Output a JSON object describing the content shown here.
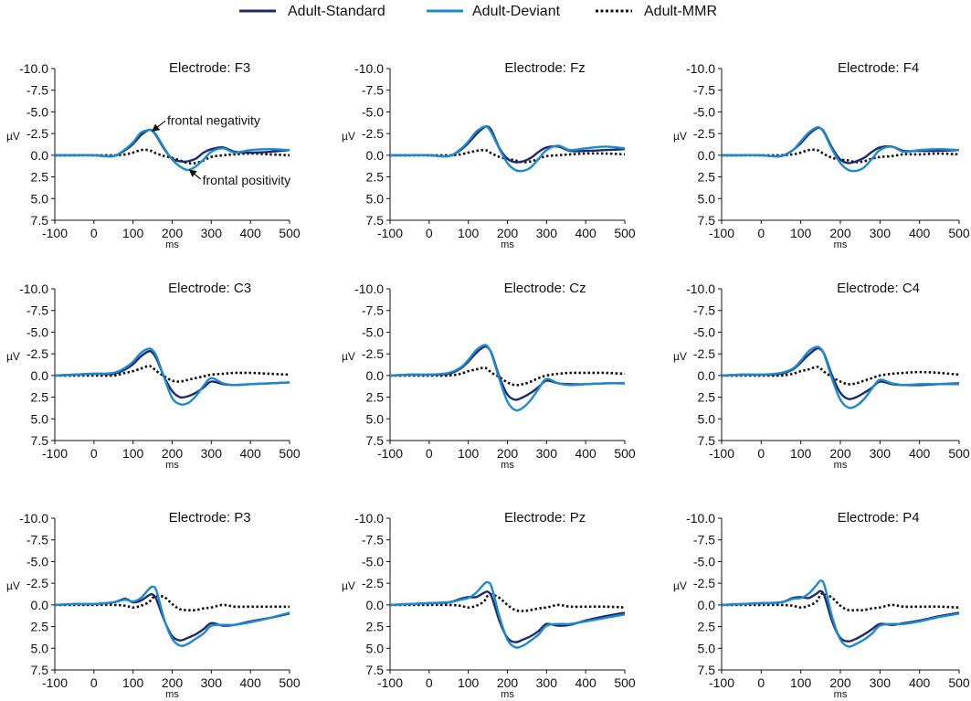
{
  "chart_data": {
    "type": "line",
    "legend": {
      "position": "top-center",
      "entries": [
        {
          "name": "Adult-Standard",
          "color": "#1f2a6b",
          "style": "solid"
        },
        {
          "name": "Adult-Deviant",
          "color": "#1d8ad0",
          "style": "solid"
        },
        {
          "name": "Adult-MMR",
          "color": "#111111",
          "style": "dotted"
        }
      ]
    },
    "layout": "3x3 grid",
    "xlabel": "ms",
    "ylabel": "µV",
    "xlim": [
      -100,
      500
    ],
    "ylim": [
      -10,
      7.5
    ],
    "y_inverted": true,
    "xticks": [
      -100,
      0,
      100,
      200,
      300,
      400,
      500
    ],
    "yticks": [
      -10,
      -7.5,
      -5,
      -2.5,
      0,
      2.5,
      5,
      7.5
    ],
    "ytick_labels": [
      "-10.0",
      "-7.5",
      "-5.0",
      "-2.5",
      "0.0",
      "2.5",
      "5.0",
      "7.5"
    ],
    "xtick_labels": [
      "-100",
      "0",
      "100",
      "200",
      "300",
      "400",
      "500"
    ],
    "x": [
      -100,
      -50,
      0,
      50,
      80,
      100,
      120,
      140,
      150,
      160,
      180,
      200,
      220,
      240,
      260,
      280,
      300,
      330,
      360,
      400,
      450,
      500
    ],
    "panels": [
      {
        "title": "Electrode: F3",
        "annotations": [
          {
            "text": "frontal negativity",
            "x": 145,
            "y": -2.8
          },
          {
            "text": "frontal positivity",
            "x": 240,
            "y": 1.7
          }
        ],
        "series": [
          {
            "name": "Adult-Standard",
            "values": [
              0,
              0,
              0,
              0.1,
              -0.6,
              -1.3,
              -2.3,
              -2.9,
              -2.8,
              -2.2,
              -0.7,
              0.4,
              0.7,
              0.7,
              0.4,
              -0.3,
              -0.7,
              -0.9,
              -0.4,
              -0.3,
              -0.4,
              -0.6
            ]
          },
          {
            "name": "Adult-Deviant",
            "values": [
              0,
              0,
              0,
              0.1,
              -0.7,
              -1.5,
              -2.6,
              -2.9,
              -2.8,
              -2.3,
              -0.8,
              0.5,
              1.3,
              1.7,
              1.3,
              0.5,
              -0.4,
              -0.8,
              -0.3,
              -0.6,
              -0.7,
              -0.6
            ]
          },
          {
            "name": "Adult-MMR",
            "values": [
              0,
              0,
              0,
              0,
              -0.1,
              -0.3,
              -0.6,
              -0.6,
              -0.4,
              -0.2,
              0.1,
              0.3,
              0.6,
              0.9,
              0.9,
              0.6,
              0.2,
              0,
              -0.1,
              -0.2,
              -0.1,
              0
            ]
          }
        ]
      },
      {
        "title": "Electrode: Fz",
        "annotations": [],
        "series": [
          {
            "name": "Adult-Standard",
            "values": [
              0,
              0,
              0,
              0.1,
              -0.6,
              -1.4,
              -2.4,
              -3.2,
              -3.3,
              -2.8,
              -0.8,
              0.4,
              0.8,
              0.7,
              0.3,
              -0.4,
              -0.9,
              -1.0,
              -0.5,
              -0.5,
              -0.6,
              -0.7
            ]
          },
          {
            "name": "Adult-Deviant",
            "values": [
              0,
              0,
              0,
              0.1,
              -0.7,
              -1.6,
              -2.7,
              -3.3,
              -3.2,
              -2.5,
              -0.7,
              0.9,
              1.7,
              1.8,
              1.4,
              0.4,
              -0.6,
              -1.1,
              -0.6,
              -0.8,
              -1.0,
              -0.8
            ]
          },
          {
            "name": "Adult-MMR",
            "values": [
              0,
              0,
              0,
              0,
              -0.1,
              -0.3,
              -0.5,
              -0.6,
              -0.5,
              -0.2,
              0.2,
              0.4,
              0.6,
              0.8,
              0.7,
              0.4,
              0.1,
              0,
              -0.1,
              -0.2,
              -0.2,
              -0.1
            ]
          }
        ]
      },
      {
        "title": "Electrode: F4",
        "annotations": [],
        "series": [
          {
            "name": "Adult-Standard",
            "values": [
              0,
              0,
              0,
              0.1,
              -0.6,
              -1.4,
              -2.4,
              -3.1,
              -3.1,
              -2.6,
              -0.8,
              0.5,
              0.9,
              0.7,
              0.3,
              -0.4,
              -0.9,
              -1.0,
              -0.5,
              -0.5,
              -0.5,
              -0.6
            ]
          },
          {
            "name": "Adult-Deviant",
            "values": [
              0,
              0,
              0,
              0.1,
              -0.6,
              -1.6,
              -2.6,
              -3.2,
              -3.1,
              -2.5,
              -0.6,
              0.9,
              1.7,
              1.8,
              1.4,
              0.4,
              -0.6,
              -1.0,
              -0.4,
              -0.6,
              -0.7,
              -0.6
            ]
          },
          {
            "name": "Adult-MMR",
            "values": [
              0,
              0,
              0,
              0,
              -0.1,
              -0.3,
              -0.6,
              -0.6,
              -0.4,
              -0.1,
              0.3,
              0.5,
              0.6,
              0.8,
              0.7,
              0.4,
              0.2,
              0.1,
              -0.1,
              -0.1,
              -0.2,
              -0.1
            ]
          }
        ]
      },
      {
        "title": "Electrode: C3",
        "annotations": [],
        "series": [
          {
            "name": "Adult-Standard",
            "values": [
              0,
              -0.1,
              -0.2,
              -0.2,
              -0.7,
              -1.3,
              -2.2,
              -2.8,
              -2.6,
              -1.9,
              0.2,
              1.8,
              2.5,
              2.4,
              2.0,
              1.4,
              0.7,
              1.0,
              1.1,
              1.0,
              0.9,
              0.8
            ]
          },
          {
            "name": "Adult-Deviant",
            "values": [
              0,
              -0.1,
              -0.2,
              -0.3,
              -0.9,
              -1.6,
              -2.6,
              -3.1,
              -2.9,
              -2.2,
              0.3,
              2.6,
              3.3,
              3.2,
              2.4,
              1.2,
              0.3,
              0.9,
              1.1,
              1.0,
              0.9,
              0.8
            ]
          },
          {
            "name": "Adult-MMR",
            "values": [
              0,
              0,
              0,
              0,
              -0.3,
              -0.5,
              -0.8,
              -1.1,
              -0.9,
              -0.5,
              0.1,
              0.6,
              0.7,
              0.5,
              0.3,
              0.1,
              -0.1,
              -0.2,
              -0.3,
              -0.3,
              -0.2,
              -0.1
            ]
          }
        ]
      },
      {
        "title": "Electrode: Cz",
        "annotations": [],
        "series": [
          {
            "name": "Adult-Standard",
            "values": [
              0,
              -0.1,
              -0.1,
              -0.2,
              -0.8,
              -1.6,
              -2.6,
              -3.3,
              -3.2,
              -2.5,
              0.2,
              2.2,
              2.8,
              2.5,
              2.0,
              1.3,
              0.6,
              0.9,
              1.0,
              1.0,
              0.9,
              0.9
            ]
          },
          {
            "name": "Adult-Deviant",
            "values": [
              0,
              -0.1,
              -0.1,
              -0.3,
              -0.9,
              -1.8,
              -2.9,
              -3.5,
              -3.3,
              -2.4,
              0.5,
              3.0,
              4.0,
              3.7,
              2.8,
              1.5,
              0.4,
              0.9,
              1.1,
              1.0,
              0.9,
              0.9
            ]
          },
          {
            "name": "Adult-MMR",
            "values": [
              0,
              0,
              0,
              0,
              -0.2,
              -0.5,
              -0.7,
              -0.9,
              -0.7,
              -0.3,
              0.2,
              0.8,
              1.1,
              1.0,
              0.7,
              0.3,
              0,
              -0.2,
              -0.3,
              -0.3,
              -0.3,
              -0.2
            ]
          }
        ]
      },
      {
        "title": "Electrode: C4",
        "annotations": [],
        "series": [
          {
            "name": "Adult-Standard",
            "values": [
              0,
              -0.1,
              -0.1,
              -0.2,
              -0.7,
              -1.5,
              -2.4,
              -3.1,
              -3.0,
              -2.4,
              0.1,
              2.0,
              2.7,
              2.5,
              2.0,
              1.4,
              0.7,
              1.0,
              1.1,
              1.1,
              1.0,
              0.9
            ]
          },
          {
            "name": "Adult-Deviant",
            "values": [
              0,
              -0.1,
              -0.1,
              -0.3,
              -0.8,
              -1.7,
              -2.8,
              -3.3,
              -3.1,
              -2.3,
              0.5,
              2.8,
              3.7,
              3.5,
              2.7,
              1.5,
              0.5,
              0.9,
              1.1,
              1.0,
              1.0,
              1.0
            ]
          },
          {
            "name": "Adult-MMR",
            "values": [
              0,
              0,
              0,
              0,
              -0.2,
              -0.5,
              -0.7,
              -1.0,
              -0.8,
              -0.4,
              0.2,
              0.7,
              1.0,
              0.9,
              0.6,
              0.3,
              0,
              -0.2,
              -0.3,
              -0.4,
              -0.3,
              -0.1
            ]
          }
        ]
      },
      {
        "title": "Electrode: P3",
        "annotations": [],
        "series": [
          {
            "name": "Adult-Standard",
            "values": [
              0,
              -0.1,
              -0.1,
              -0.3,
              -0.7,
              -0.3,
              -0.5,
              -1.1,
              -1.2,
              -0.6,
              1.8,
              3.6,
              4.1,
              3.8,
              3.4,
              2.8,
              2.1,
              2.4,
              2.3,
              1.9,
              1.5,
              1.0
            ]
          },
          {
            "name": "Adult-Deviant",
            "values": [
              0,
              -0.1,
              -0.1,
              -0.3,
              -0.6,
              -0.4,
              -0.8,
              -1.8,
              -2.1,
              -1.6,
              1.7,
              3.9,
              4.7,
              4.5,
              3.9,
              3.3,
              2.4,
              2.3,
              2.3,
              2.0,
              1.5,
              0.9
            ]
          },
          {
            "name": "Adult-MMR",
            "values": [
              0,
              0,
              0,
              0,
              0.1,
              0.3,
              0.1,
              -0.3,
              -0.8,
              -1.0,
              -0.9,
              -0.1,
              0.5,
              0.6,
              0.6,
              0.4,
              0.3,
              0,
              0.2,
              0.2,
              0.2,
              0.2
            ]
          }
        ]
      },
      {
        "title": "Electrode: Pz",
        "annotations": [],
        "series": [
          {
            "name": "Adult-Standard",
            "values": [
              0,
              -0.1,
              -0.2,
              -0.3,
              -0.7,
              -0.9,
              -0.9,
              -1.4,
              -1.5,
              -0.9,
              1.9,
              3.8,
              4.3,
              4.0,
              3.6,
              3.0,
              2.2,
              2.4,
              2.3,
              1.8,
              1.3,
              0.9
            ]
          },
          {
            "name": "Adult-Deviant",
            "values": [
              0,
              -0.1,
              -0.2,
              -0.3,
              -0.6,
              -0.8,
              -1.4,
              -2.4,
              -2.6,
              -2.0,
              1.4,
              4.0,
              4.9,
              4.7,
              4.1,
              3.4,
              2.4,
              2.2,
              2.2,
              1.9,
              1.5,
              1.1
            ]
          },
          {
            "name": "Adult-MMR",
            "values": [
              0,
              0,
              0,
              0,
              0.1,
              0.3,
              0.1,
              -0.4,
              -1.1,
              -1.2,
              -0.8,
              0,
              0.6,
              0.7,
              0.6,
              0.4,
              0.3,
              0,
              0.2,
              0.2,
              0.2,
              0.3
            ]
          }
        ]
      },
      {
        "title": "Electrode: P4",
        "annotations": [],
        "series": [
          {
            "name": "Adult-Standard",
            "values": [
              0,
              -0.1,
              -0.2,
              -0.3,
              -0.8,
              -0.9,
              -0.8,
              -1.3,
              -1.6,
              -1.0,
              2.0,
              3.8,
              4.2,
              3.9,
              3.4,
              2.8,
              2.2,
              2.3,
              2.1,
              1.8,
              1.3,
              0.9
            ]
          },
          {
            "name": "Adult-Deviant",
            "values": [
              0,
              -0.1,
              -0.2,
              -0.3,
              -0.7,
              -0.8,
              -1.3,
              -2.3,
              -2.8,
              -2.2,
              1.5,
              4.0,
              4.8,
              4.5,
              4.0,
              3.3,
              2.4,
              2.2,
              2.2,
              1.9,
              1.4,
              1.0
            ]
          },
          {
            "name": "Adult-MMR",
            "values": [
              0,
              0,
              0,
              0,
              0.1,
              0.3,
              0.1,
              -0.4,
              -1.2,
              -1.3,
              -0.8,
              0.1,
              0.6,
              0.6,
              0.6,
              0.4,
              0.3,
              0,
              0.2,
              0.2,
              0.2,
              0.3
            ]
          }
        ]
      }
    ]
  }
}
